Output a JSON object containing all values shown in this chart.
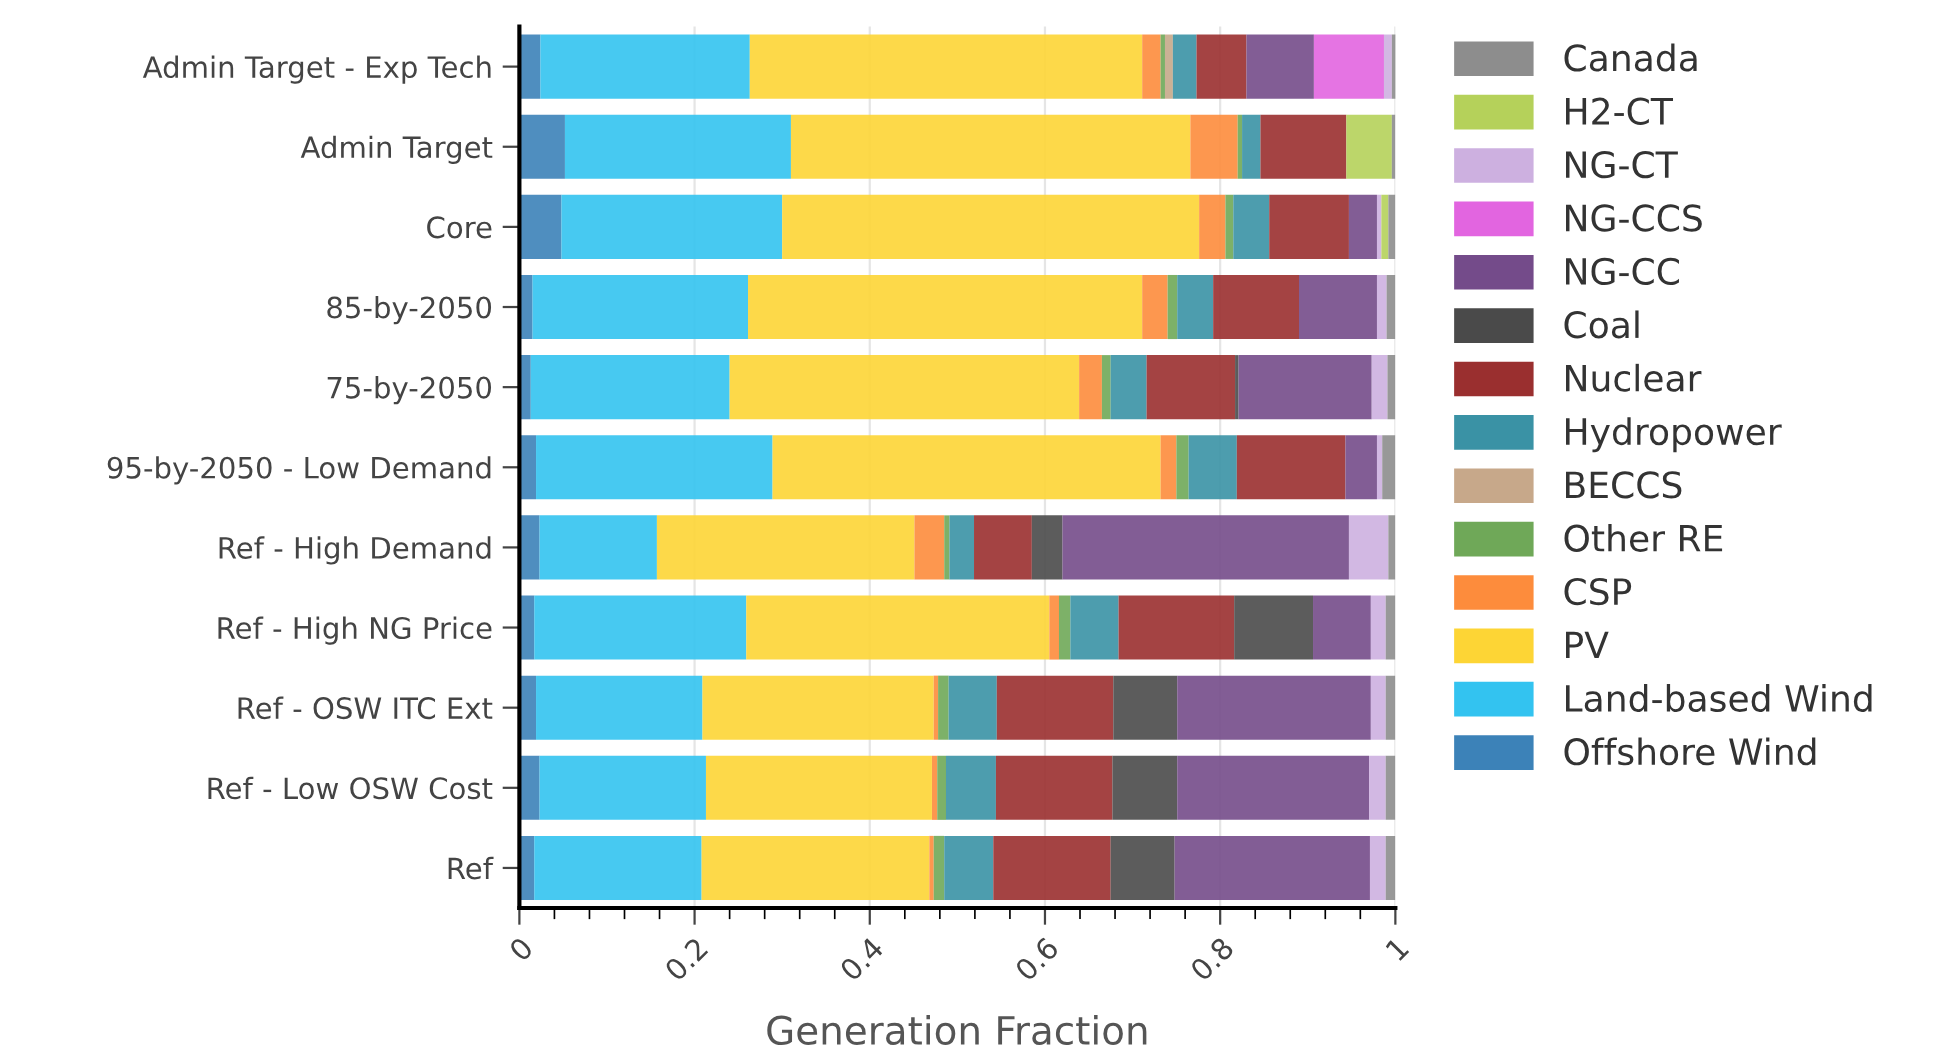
{
  "chart_data": {
    "type": "bar",
    "orientation": "horizontal",
    "stacked": true,
    "xlabel": "Generation Fraction",
    "categories": [
      "Admin Target - Exp Tech",
      "Admin Target",
      "Core",
      "85-by-2050",
      "75-by-2050",
      "95-by-2050 - Low Demand",
      "Ref - High Demand",
      "Ref - High NG Price",
      "Ref - OSW ITC Ext",
      "Ref - Low OSW Cost",
      "Ref"
    ],
    "xlim": [
      0,
      1
    ],
    "xticks": [
      0,
      0.2,
      0.4,
      0.6,
      0.8,
      1
    ],
    "grid": "x",
    "legend": "right",
    "series": [
      {
        "name": "Offshore Wind",
        "color": "#3c82b8",
        "values": [
          0.024,
          0.052,
          0.048,
          0.015,
          0.013,
          0.019,
          0.023,
          0.017,
          0.019,
          0.023,
          0.017
        ]
      },
      {
        "name": "Land-based Wind",
        "color": "#33c3f0",
        "values": [
          0.239,
          0.258,
          0.252,
          0.246,
          0.227,
          0.27,
          0.134,
          0.242,
          0.19,
          0.19,
          0.191
        ]
      },
      {
        "name": "PV",
        "color": "#fdd535",
        "values": [
          0.448,
          0.456,
          0.476,
          0.45,
          0.399,
          0.443,
          0.294,
          0.346,
          0.264,
          0.258,
          0.26
        ]
      },
      {
        "name": "CSP",
        "color": "#fd8c3c",
        "values": [
          0.021,
          0.054,
          0.03,
          0.029,
          0.026,
          0.018,
          0.034,
          0.011,
          0.005,
          0.006,
          0.005
        ]
      },
      {
        "name": "Other RE",
        "color": "#6fa858",
        "values": [
          0.005,
          0.005,
          0.009,
          0.011,
          0.01,
          0.014,
          0.006,
          0.013,
          0.012,
          0.01,
          0.012
        ]
      },
      {
        "name": "BECCS",
        "color": "#c7a88a",
        "values": [
          0.009,
          0,
          0,
          0,
          0,
          0,
          0,
          0,
          0,
          0,
          0
        ]
      },
      {
        "name": "Hydropower",
        "color": "#3a92a5",
        "values": [
          0.027,
          0.021,
          0.041,
          0.041,
          0.041,
          0.055,
          0.028,
          0.055,
          0.055,
          0.057,
          0.056
        ]
      },
      {
        "name": "Nuclear",
        "color": "#9a2f2f",
        "values": [
          0.057,
          0.098,
          0.091,
          0.098,
          0.101,
          0.124,
          0.066,
          0.132,
          0.133,
          0.133,
          0.134
        ]
      },
      {
        "name": "Coal",
        "color": "#4a4a4a",
        "values": [
          0,
          0,
          0,
          0,
          0.004,
          0,
          0.035,
          0.09,
          0.073,
          0.074,
          0.073
        ]
      },
      {
        "name": "NG-CC",
        "color": "#744b8a",
        "values": [
          0.077,
          0,
          0.032,
          0.089,
          0.152,
          0.036,
          0.327,
          0.066,
          0.221,
          0.219,
          0.223
        ]
      },
      {
        "name": "NG-CCS",
        "color": "#e265e0",
        "values": [
          0.08,
          0,
          0,
          0,
          0,
          0,
          0,
          0,
          0,
          0,
          0
        ]
      },
      {
        "name": "NG-CT",
        "color": "#cdb0e0",
        "values": [
          0.009,
          0,
          0.005,
          0.011,
          0.018,
          0.006,
          0.045,
          0.017,
          0.017,
          0.019,
          0.018
        ]
      },
      {
        "name": "H2-CT",
        "color": "#b5d15a",
        "values": [
          0,
          0.052,
          0.008,
          0,
          0,
          0,
          0,
          0,
          0,
          0,
          0
        ]
      },
      {
        "name": "Canada",
        "color": "#8d8d8d",
        "values": [
          0.005,
          0.004,
          0.008,
          0.01,
          0.009,
          0.015,
          0.008,
          0.011,
          0.011,
          0.011,
          0.011
        ]
      }
    ]
  }
}
